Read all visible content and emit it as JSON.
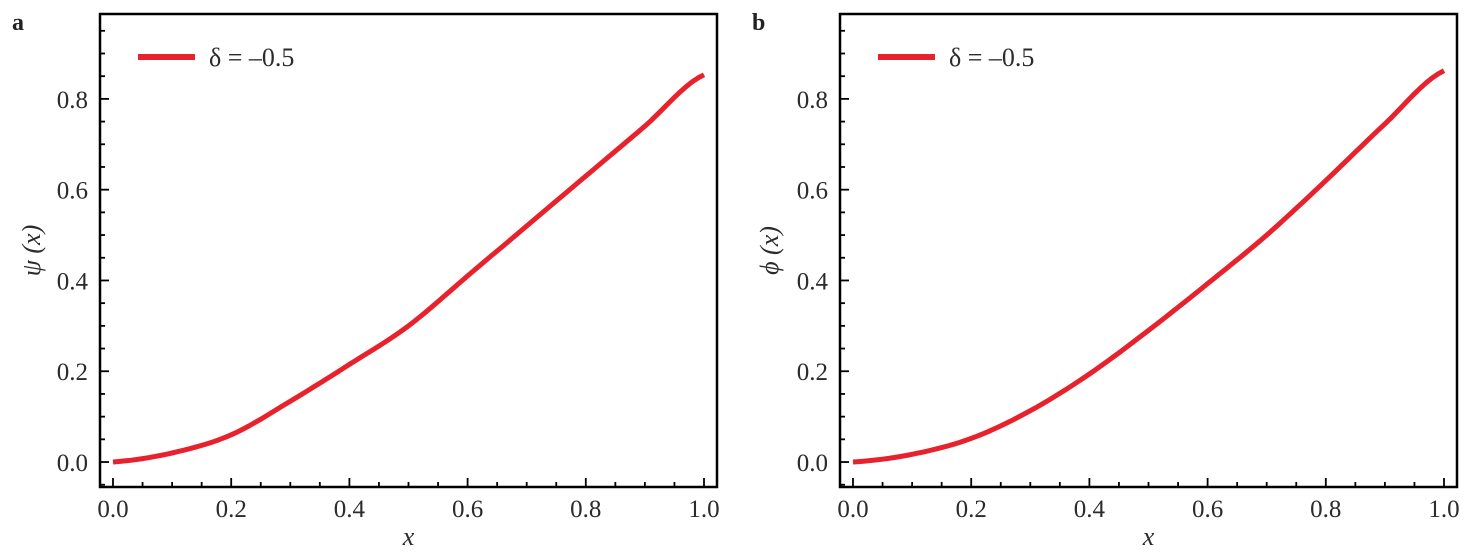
{
  "chart_data": [
    {
      "type": "line",
      "panel_label": "a",
      "xlabel": "x",
      "ylabel": "ψ (x)",
      "xlim": [
        -0.022,
        1.022
      ],
      "ylim": [
        -0.055,
        0.987
      ],
      "xticks": [
        "0.0",
        "0.2",
        "0.4",
        "0.6",
        "0.8",
        "1.0"
      ],
      "yticks": [
        "0.0",
        "0.2",
        "0.4",
        "0.6",
        "0.8"
      ],
      "grid": false,
      "legend_position": "top-left",
      "series": [
        {
          "name": "δ = –0.5",
          "color": "#e8222d",
          "x": [
            0,
            0.1,
            0.2,
            0.3,
            0.4,
            0.5,
            0.6,
            0.7,
            0.8,
            0.9,
            1.0
          ],
          "y": [
            0,
            0.02,
            0.06,
            0.134,
            0.215,
            0.3,
            0.41,
            0.52,
            0.63,
            0.74,
            0.853
          ]
        }
      ]
    },
    {
      "type": "line",
      "panel_label": "b",
      "xlabel": "x",
      "ylabel": "ϕ (x)",
      "xlim": [
        -0.022,
        1.022
      ],
      "ylim": [
        -0.055,
        0.987
      ],
      "xticks": [
        "0.0",
        "0.2",
        "0.4",
        "0.6",
        "0.8",
        "1.0"
      ],
      "yticks": [
        "0.0",
        "0.2",
        "0.4",
        "0.6",
        "0.8"
      ],
      "grid": false,
      "legend_position": "top-left",
      "series": [
        {
          "name": "δ = –0.5",
          "color": "#e8222d",
          "x": [
            0,
            0.1,
            0.2,
            0.3,
            0.4,
            0.5,
            0.6,
            0.7,
            0.8,
            0.9,
            1.0
          ],
          "y": [
            0,
            0.017,
            0.052,
            0.113,
            0.194,
            0.29,
            0.393,
            0.5,
            0.62,
            0.745,
            0.862
          ]
        }
      ]
    }
  ]
}
